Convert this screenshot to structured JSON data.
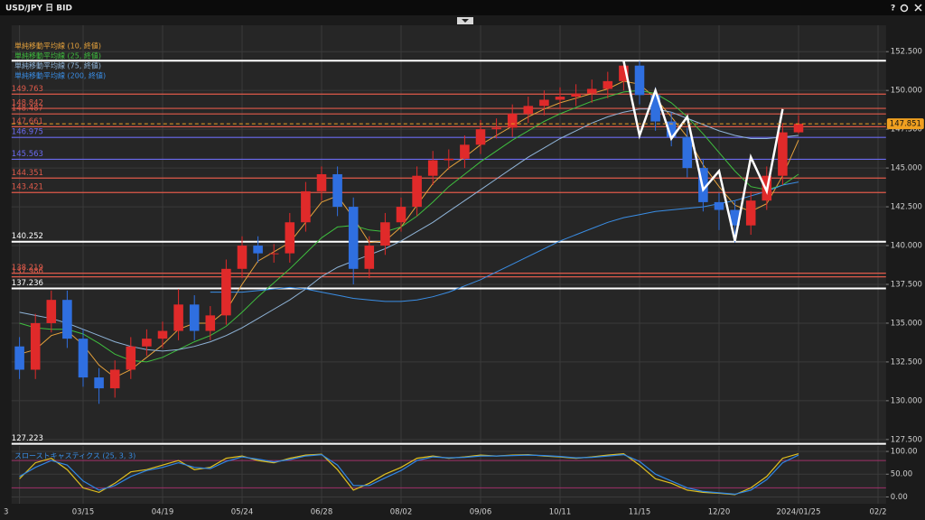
{
  "window": {
    "title": "USD/JPY 日 BID",
    "help": "?"
  },
  "chart_data": [
    {
      "type": "candlestick",
      "categories": [
        "3",
        null,
        null,
        null,
        "03/15",
        null,
        null,
        null,
        null,
        "04/19",
        null,
        null,
        null,
        null,
        "05/24",
        null,
        null,
        null,
        null,
        "06/28",
        null,
        null,
        null,
        null,
        "08/02",
        null,
        null,
        null,
        null,
        "09/06",
        null,
        null,
        null,
        null,
        "10/11",
        null,
        null,
        null,
        null,
        "11/15",
        null,
        null,
        null,
        null,
        "12/20",
        null,
        null,
        null,
        null,
        "2024/01/25",
        null,
        null,
        null,
        null,
        "02/2"
      ],
      "open": [
        133.5,
        132.0,
        135.0,
        136.5,
        134.0,
        131.5,
        130.8,
        132.0,
        133.5,
        134.0,
        134.5,
        136.2,
        134.5,
        135.5,
        138.5,
        140.0,
        139.5,
        139.5,
        141.5,
        143.5,
        144.6,
        142.5,
        138.5,
        140.0,
        141.5,
        142.5,
        144.5,
        145.5,
        145.6,
        146.5,
        147.5,
        147.6,
        148.5,
        149.0,
        149.4,
        149.6,
        149.8,
        150.1,
        150.6,
        151.6,
        149.7,
        148.0,
        147.0,
        145.0,
        142.8,
        142.3,
        141.3,
        142.9,
        144.5,
        147.3,
        null,
        null,
        null,
        null,
        null
      ],
      "high": [
        134.1,
        135.6,
        137.1,
        137.1,
        134.6,
        132.1,
        132.6,
        134.1,
        134.6,
        135.1,
        137.2,
        136.8,
        136.1,
        139.1,
        140.6,
        140.6,
        140.1,
        142.1,
        144.1,
        145.1,
        145.1,
        143.1,
        140.6,
        142.1,
        143.1,
        145.1,
        146.1,
        146.2,
        147.1,
        148.1,
        148.2,
        149.1,
        149.6,
        150.0,
        150.2,
        150.4,
        150.7,
        151.2,
        151.9,
        151.9,
        150.2,
        148.6,
        147.6,
        145.6,
        143.4,
        142.9,
        143.5,
        145.1,
        147.9,
        148.4,
        null,
        null,
        null,
        null,
        null
      ],
      "low": [
        131.4,
        131.4,
        134.4,
        133.4,
        130.9,
        129.8,
        130.2,
        131.4,
        132.9,
        133.4,
        133.9,
        133.9,
        133.9,
        134.9,
        137.9,
        138.9,
        138.9,
        138.9,
        140.9,
        142.9,
        141.9,
        137.5,
        137.9,
        139.4,
        140.9,
        141.9,
        143.9,
        144.9,
        145.0,
        145.9,
        146.9,
        147.0,
        147.9,
        148.4,
        148.8,
        149.0,
        149.2,
        149.5,
        150.0,
        149.1,
        147.4,
        146.4,
        144.4,
        142.2,
        141.0,
        140.2,
        140.7,
        142.3,
        143.9,
        147.2,
        null,
        null,
        null,
        null,
        null
      ],
      "close": [
        132.0,
        135.0,
        136.5,
        134.0,
        131.5,
        130.8,
        132.0,
        133.5,
        134.0,
        134.5,
        136.2,
        134.5,
        135.5,
        138.5,
        140.0,
        139.5,
        139.5,
        141.5,
        143.5,
        144.6,
        142.5,
        138.5,
        140.0,
        141.5,
        142.5,
        144.5,
        145.5,
        145.6,
        146.5,
        147.5,
        147.6,
        148.5,
        149.0,
        149.4,
        149.6,
        149.8,
        150.1,
        150.6,
        151.6,
        149.7,
        148.0,
        147.0,
        145.0,
        142.8,
        142.3,
        141.3,
        142.9,
        144.5,
        147.3,
        147.85,
        null,
        null,
        null,
        null,
        null
      ],
      "up_color": "#e02a2a",
      "down_color": "#2f6fe0",
      "series": [
        {
          "name": "単純移動平均線 (10, 終値)",
          "color": "#e6a23c",
          "values": [
            133.0,
            133.3,
            134.2,
            134.5,
            133.6,
            132.3,
            131.5,
            132.0,
            132.8,
            133.6,
            134.6,
            135.0,
            135.0,
            135.8,
            137.5,
            139.0,
            139.6,
            140.2,
            141.5,
            142.8,
            143.2,
            141.8,
            140.2,
            140.3,
            141.2,
            142.6,
            144.0,
            145.0,
            145.7,
            146.5,
            147.1,
            147.7,
            148.3,
            148.8,
            149.2,
            149.5,
            149.8,
            150.1,
            150.6,
            150.4,
            149.5,
            148.3,
            147.0,
            145.2,
            143.8,
            142.6,
            142.2,
            142.7,
            144.5,
            146.8,
            null,
            null,
            null,
            null,
            null
          ]
        },
        {
          "name": "単純移動平均線 (25, 終値)",
          "color": "#3fbf3f",
          "values": [
            135.0,
            134.7,
            134.6,
            134.6,
            134.3,
            133.7,
            133.0,
            132.6,
            132.5,
            132.8,
            133.3,
            133.8,
            134.2,
            134.8,
            135.7,
            136.7,
            137.6,
            138.5,
            139.5,
            140.5,
            141.2,
            141.3,
            141.0,
            140.9,
            141.2,
            141.9,
            142.8,
            143.8,
            144.6,
            145.4,
            146.1,
            146.8,
            147.4,
            148.0,
            148.5,
            148.9,
            149.3,
            149.6,
            149.9,
            150.0,
            149.8,
            149.2,
            148.3,
            147.2,
            146.0,
            144.8,
            143.8,
            143.6,
            143.9,
            144.6,
            null,
            null,
            null,
            null,
            null
          ]
        },
        {
          "name": "単純移動平均線 (75, 終値)",
          "color": "#8fb4d8",
          "values": [
            135.7,
            135.5,
            135.3,
            135.0,
            134.6,
            134.2,
            133.8,
            133.5,
            133.3,
            133.2,
            133.3,
            133.5,
            133.8,
            134.2,
            134.7,
            135.3,
            135.9,
            136.5,
            137.2,
            138.0,
            138.6,
            139.0,
            139.4,
            139.8,
            140.3,
            140.9,
            141.5,
            142.2,
            142.9,
            143.6,
            144.3,
            145.0,
            145.7,
            146.3,
            146.9,
            147.4,
            147.9,
            148.3,
            148.6,
            148.8,
            148.8,
            148.6,
            148.2,
            147.8,
            147.4,
            147.1,
            146.9,
            146.9,
            147.0,
            147.1,
            null,
            null,
            null,
            null,
            null
          ]
        },
        {
          "name": "単純移動平均線 (200, 終値)",
          "color": "#3a8ee6",
          "values": [
            null,
            null,
            null,
            null,
            null,
            null,
            null,
            null,
            null,
            null,
            null,
            null,
            137.0,
            137.0,
            137.0,
            137.1,
            137.2,
            137.3,
            137.2,
            137.0,
            136.8,
            136.6,
            136.5,
            136.4,
            136.4,
            136.5,
            136.7,
            137.0,
            137.4,
            137.8,
            138.3,
            138.8,
            139.3,
            139.8,
            140.3,
            140.7,
            141.1,
            141.5,
            141.8,
            142.0,
            142.2,
            142.3,
            142.4,
            142.5,
            142.7,
            142.9,
            143.2,
            143.5,
            143.9,
            144.1,
            null,
            null,
            null,
            null,
            null
          ]
        }
      ],
      "zigzag": {
        "color": "#ffffff",
        "values": [
          null,
          null,
          null,
          null,
          null,
          null,
          null,
          null,
          null,
          null,
          null,
          null,
          null,
          null,
          null,
          null,
          null,
          null,
          null,
          null,
          null,
          null,
          null,
          null,
          null,
          null,
          null,
          null,
          null,
          null,
          null,
          null,
          null,
          null,
          null,
          null,
          null,
          null,
          151.9,
          147.1,
          150.0,
          146.9,
          148.3,
          143.6,
          144.8,
          140.3,
          145.7,
          143.5,
          148.8,
          null,
          null,
          null,
          null,
          null,
          null
        ]
      },
      "levels": [
        {
          "value": 151.919,
          "label": null,
          "color": "#ffffff"
        },
        {
          "value": 149.763,
          "label": "149.763",
          "color": "#e05a4a"
        },
        {
          "value": 148.842,
          "label": "148.842",
          "color": "#e05a4a"
        },
        {
          "value": 148.487,
          "label": "148.487",
          "color": "#e05a4a"
        },
        {
          "value": 147.661,
          "label": "147.661",
          "color": "#e05a4a"
        },
        {
          "value": 146.975,
          "label": "146.975",
          "color": "#6a6af0"
        },
        {
          "value": 145.563,
          "label": "145.563",
          "color": "#6a6af0"
        },
        {
          "value": 144.351,
          "label": "144.351",
          "color": "#e05a4a"
        },
        {
          "value": 143.421,
          "label": "143.421",
          "color": "#e05a4a"
        },
        {
          "value": 140.252,
          "label": "140.252",
          "color": "#ffffff"
        },
        {
          "value": 138.219,
          "label": "138.219",
          "color": "#e05a4a"
        },
        {
          "value": 137.986,
          "label": "137.986",
          "color": "#e05a4a"
        },
        {
          "value": 137.236,
          "label": "137.236",
          "color": "#ffffff"
        },
        {
          "value": 127.223,
          "label": "127.223",
          "color": "#ffffff"
        }
      ],
      "last": {
        "value": 147.851,
        "label": "147.851",
        "color": "#f0a020"
      },
      "ylim": [
        127.2,
        154.2
      ],
      "yticks": [
        {
          "value": 127.5,
          "label": "127.500"
        },
        {
          "value": 130,
          "label": "130.000"
        },
        {
          "value": 132.5,
          "label": "132.500"
        },
        {
          "value": 135,
          "label": "135.000"
        },
        {
          "value": 137.5,
          "label": "137.500"
        },
        {
          "value": 140,
          "label": "140.000"
        },
        {
          "value": 142.5,
          "label": "142.500"
        },
        {
          "value": 145,
          "label": "145.000"
        },
        {
          "value": 147.5,
          "label": "147.500"
        },
        {
          "value": 150,
          "label": "150.000"
        },
        {
          "value": 152.5,
          "label": "152.500"
        }
      ],
      "grid": true
    },
    {
      "type": "line",
      "title": "スローストキャスティクス (25, 3, 3)",
      "series": [
        {
          "color": "#e0c020",
          "values": [
            40,
            75,
            85,
            60,
            20,
            10,
            30,
            55,
            60,
            70,
            80,
            60,
            65,
            85,
            90,
            80,
            75,
            85,
            92,
            94,
            60,
            15,
            30,
            50,
            65,
            85,
            90,
            85,
            88,
            92,
            90,
            92,
            93,
            90,
            88,
            85,
            88,
            92,
            95,
            70,
            40,
            30,
            15,
            10,
            8,
            5,
            20,
            45,
            85,
            95,
            null,
            null,
            null,
            null,
            null
          ]
        },
        {
          "color": "#2f86e6",
          "values": [
            45,
            65,
            80,
            70,
            35,
            15,
            25,
            45,
            58,
            65,
            75,
            65,
            62,
            78,
            88,
            83,
            77,
            82,
            90,
            93,
            70,
            25,
            25,
            42,
            58,
            80,
            88,
            86,
            87,
            90,
            90,
            91,
            92,
            91,
            89,
            86,
            87,
            90,
            93,
            78,
            50,
            35,
            20,
            12,
            9,
            6,
            15,
            38,
            75,
            92,
            null,
            null,
            null,
            null,
            null
          ]
        }
      ],
      "levels": [
        20,
        80
      ],
      "level_color": "#a0306a",
      "ylim": [
        -15,
        112
      ],
      "yticks": [
        {
          "value": 0,
          "label": "0.00"
        },
        {
          "value": 50,
          "label": "50.00"
        },
        {
          "value": 100,
          "label": "100.00"
        }
      ],
      "grid": true
    }
  ]
}
